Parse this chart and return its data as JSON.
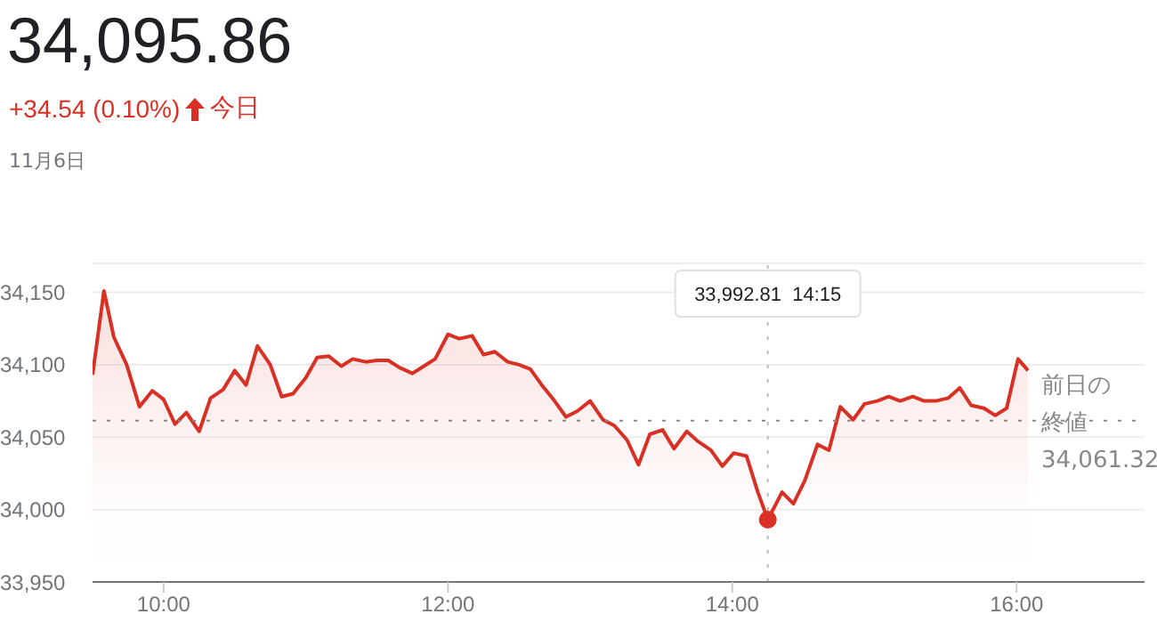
{
  "chart_data": {
    "type": "area",
    "title": "34,095.86",
    "subtitle": "+34.54 (0.10%)",
    "annotations": [
      "今日",
      "11月6日",
      "33,992.81  14:15"
    ],
    "x": [
      9.5,
      9.58,
      9.65,
      9.74,
      9.83,
      9.92,
      10.0,
      10.08,
      10.16,
      10.25,
      10.33,
      10.42,
      10.5,
      10.58,
      10.66,
      10.75,
      10.83,
      10.91,
      11.0,
      11.08,
      11.16,
      11.25,
      11.33,
      11.42,
      11.5,
      11.58,
      11.66,
      11.75,
      11.83,
      11.91,
      12.0,
      12.08,
      12.17,
      12.25,
      12.33,
      12.42,
      12.5,
      12.58,
      12.66,
      12.75,
      12.83,
      12.91,
      13.0,
      13.09,
      13.17,
      13.26,
      13.34,
      13.42,
      13.51,
      13.59,
      13.68,
      13.76,
      13.85,
      13.93,
      14.01,
      14.1,
      14.18,
      14.25,
      14.35,
      14.43,
      14.51,
      14.6,
      14.68,
      14.76,
      14.85,
      14.93,
      15.02,
      15.1,
      15.18,
      15.27,
      15.35,
      15.43,
      15.52,
      15.6,
      15.68,
      15.77,
      15.85,
      15.93,
      16.01,
      16.08
    ],
    "series": [
      {
        "color": "#d93025",
        "values": [
          34093,
          34151,
          34119,
          34100,
          34071,
          34082,
          34076,
          34059,
          34067,
          34054,
          34077,
          34083,
          34096,
          34086,
          34113,
          34100,
          34078,
          34080,
          34091,
          34105,
          34106,
          34099,
          34104,
          34102,
          34103,
          34103,
          34098,
          34094,
          34099,
          34104,
          34121,
          34118,
          34120,
          34107,
          34109,
          34102,
          34100,
          34097,
          34086,
          34075,
          34064,
          34068,
          34075,
          34062,
          34058,
          34048,
          34031,
          34052,
          34055,
          34042,
          34054,
          34047,
          34041,
          34030,
          34039,
          34037,
          34012,
          33993,
          34012,
          34004,
          34020,
          34045,
          34041,
          34071,
          34062,
          34073,
          34075,
          34078,
          34075,
          34078,
          34075,
          34075,
          34077,
          34084,
          34072,
          34070,
          34065,
          34070,
          34104,
          34096
        ]
      }
    ],
    "xlim": [
      9.5,
      16.9
    ],
    "xticks": [
      {
        "value": 10,
        "label": "10:00"
      },
      {
        "value": 12,
        "label": "12:00"
      },
      {
        "value": 14,
        "label": "14:00"
      },
      {
        "value": 16,
        "label": "16:00"
      }
    ],
    "ylim": [
      33950,
      34170
    ],
    "yticks": [
      {
        "value": 33950,
        "label": "33,950"
      },
      {
        "value": 34000,
        "label": "34,000"
      },
      {
        "value": 34050,
        "label": "34,050"
      },
      {
        "value": 34100,
        "label": "34,100"
      },
      {
        "value": 34150,
        "label": "34,150"
      }
    ],
    "grid": "y",
    "ref_lines": [
      {
        "axis": "y",
        "value": 34061.32,
        "label": "前日の終値 34,061.32",
        "color": "#888888",
        "line_style": "dotted"
      },
      {
        "axis": "x",
        "value": 14.25,
        "color": "#bbbbbb",
        "line_style": "dotted"
      }
    ]
  }
}
